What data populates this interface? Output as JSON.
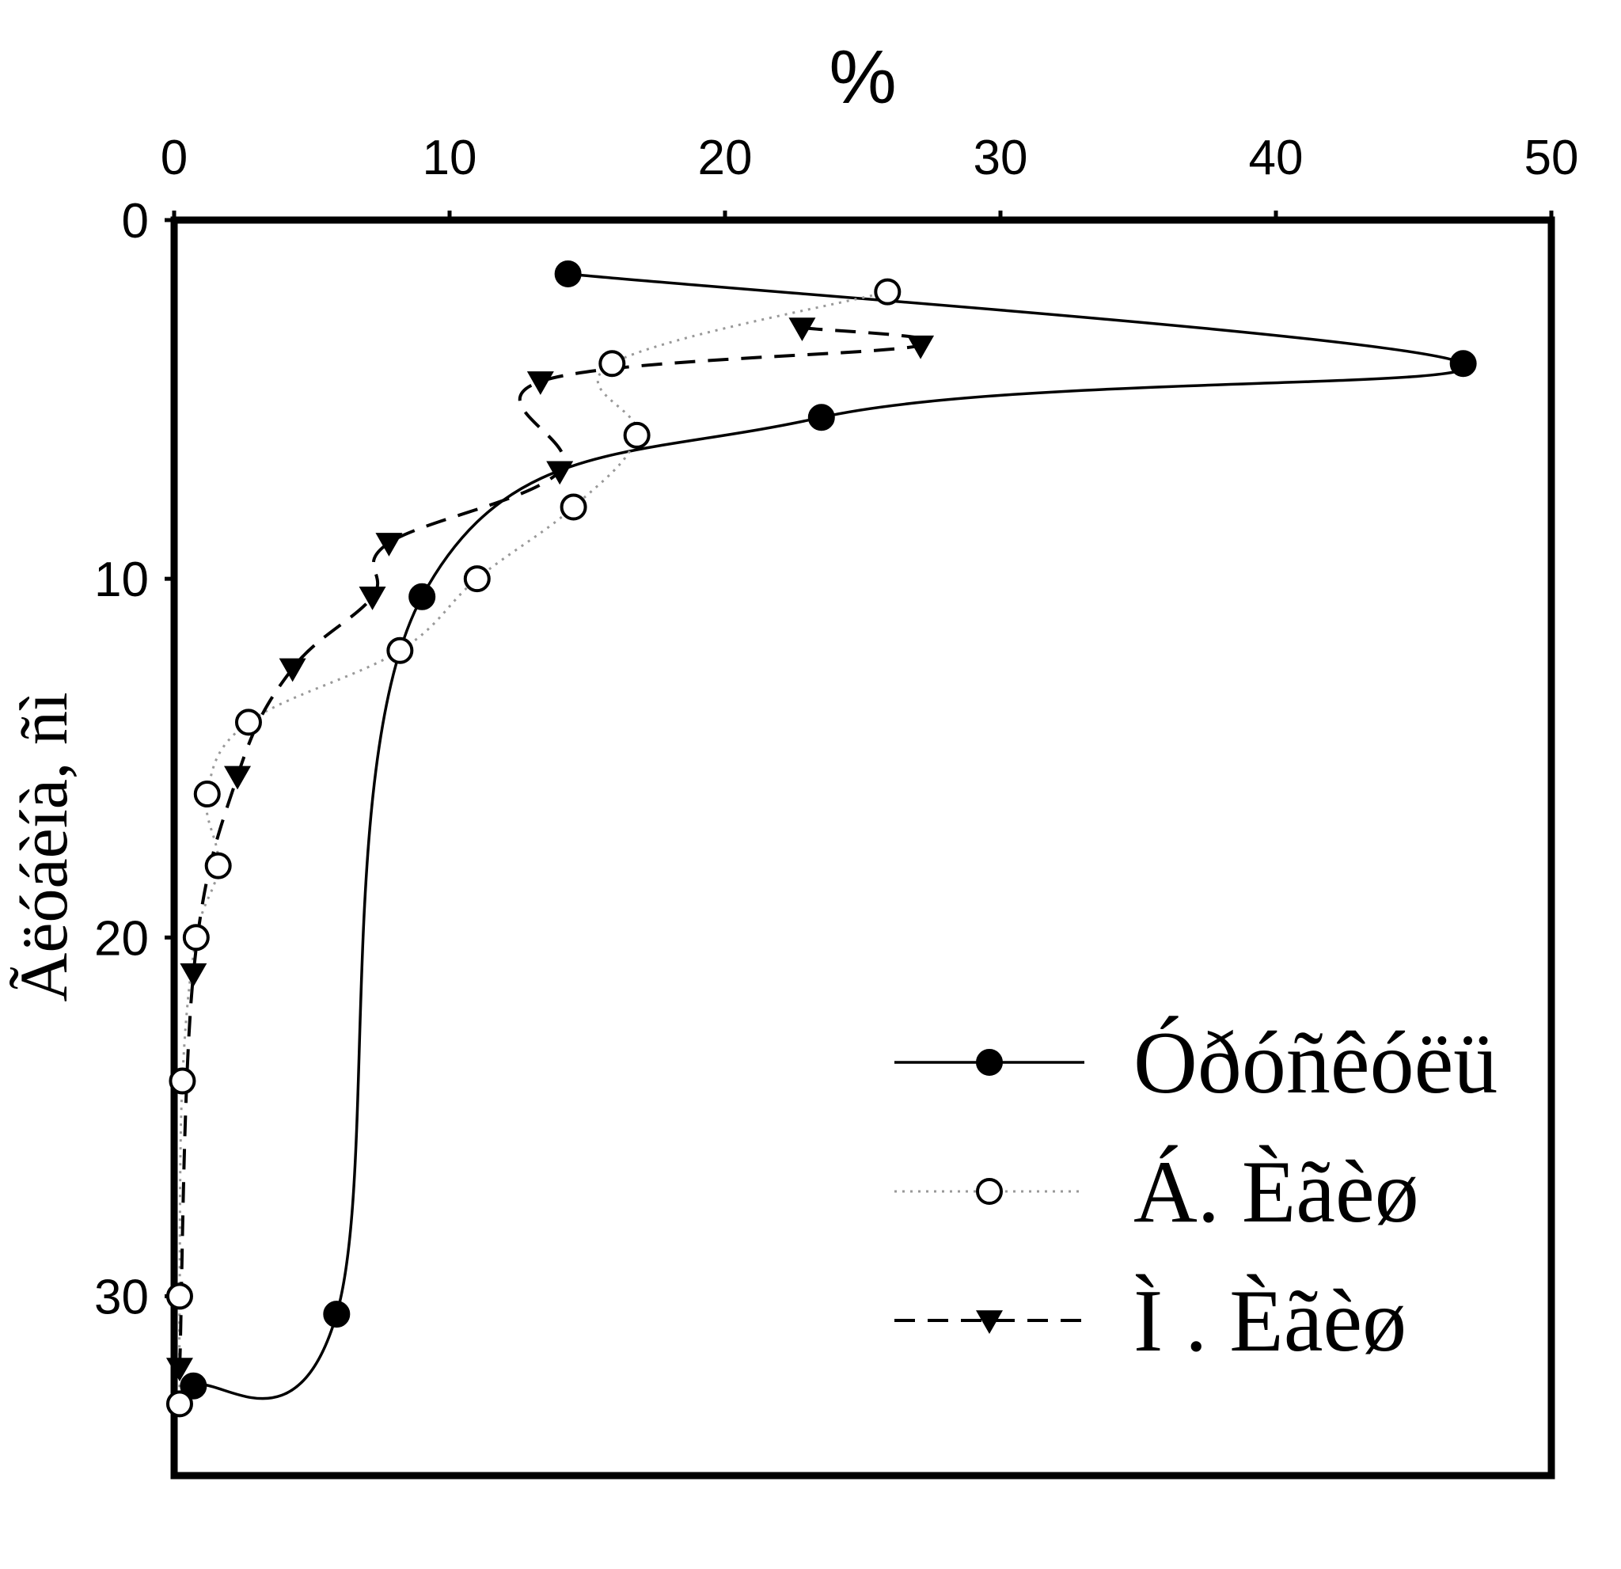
{
  "chart_data": {
    "type": "line",
    "xlabel": "%",
    "ylabel": "Ãëóáèíà, ñì",
    "xlim": [
      0,
      50
    ],
    "ylim": [
      0,
      35
    ],
    "x_ticks": [
      "0",
      "10",
      "20",
      "30",
      "40",
      "50"
    ],
    "y_ticks": [
      "0",
      "10",
      "20",
      "30"
    ],
    "y_inverted": true,
    "x_axis_position": "top",
    "grid": false,
    "legend_position": "bottom-right",
    "series": [
      {
        "name": "Óðóñêóëü",
        "marker": "filled-circle",
        "line_style": "solid",
        "color": "#000000",
        "points": [
          {
            "x": 14.3,
            "y": 1.5
          },
          {
            "x": 46.8,
            "y": 4.0
          },
          {
            "x": 23.5,
            "y": 5.5
          },
          {
            "x": 9.0,
            "y": 10.5
          },
          {
            "x": 5.9,
            "y": 30.5
          },
          {
            "x": 0.7,
            "y": 32.5
          }
        ]
      },
      {
        "name": "Á. Èãèø",
        "marker": "open-circle",
        "line_style": "dotted",
        "color": "#000000",
        "points": [
          {
            "x": 25.9,
            "y": 2.0
          },
          {
            "x": 15.9,
            "y": 4.0
          },
          {
            "x": 16.8,
            "y": 6.0
          },
          {
            "x": 14.5,
            "y": 8.0
          },
          {
            "x": 11.0,
            "y": 10.0
          },
          {
            "x": 8.2,
            "y": 12.0
          },
          {
            "x": 2.7,
            "y": 14.0
          },
          {
            "x": 1.2,
            "y": 16.0
          },
          {
            "x": 1.6,
            "y": 18.0
          },
          {
            "x": 0.8,
            "y": 20.0
          },
          {
            "x": 0.3,
            "y": 24.0
          },
          {
            "x": 0.2,
            "y": 30.0
          },
          {
            "x": 0.2,
            "y": 33.0
          }
        ]
      },
      {
        "name": "Ì . Èãèø",
        "marker": "filled-triangle-down",
        "line_style": "dashed",
        "color": "#000000",
        "points": [
          {
            "x": 22.8,
            "y": 3.0
          },
          {
            "x": 27.1,
            "y": 3.5
          },
          {
            "x": 13.3,
            "y": 4.5
          },
          {
            "x": 14.0,
            "y": 7.0
          },
          {
            "x": 7.8,
            "y": 9.0
          },
          {
            "x": 7.2,
            "y": 10.5
          },
          {
            "x": 4.3,
            "y": 12.5
          },
          {
            "x": 2.3,
            "y": 15.5
          },
          {
            "x": 0.7,
            "y": 21.0
          },
          {
            "x": 0.2,
            "y": 32.0
          }
        ]
      }
    ]
  }
}
